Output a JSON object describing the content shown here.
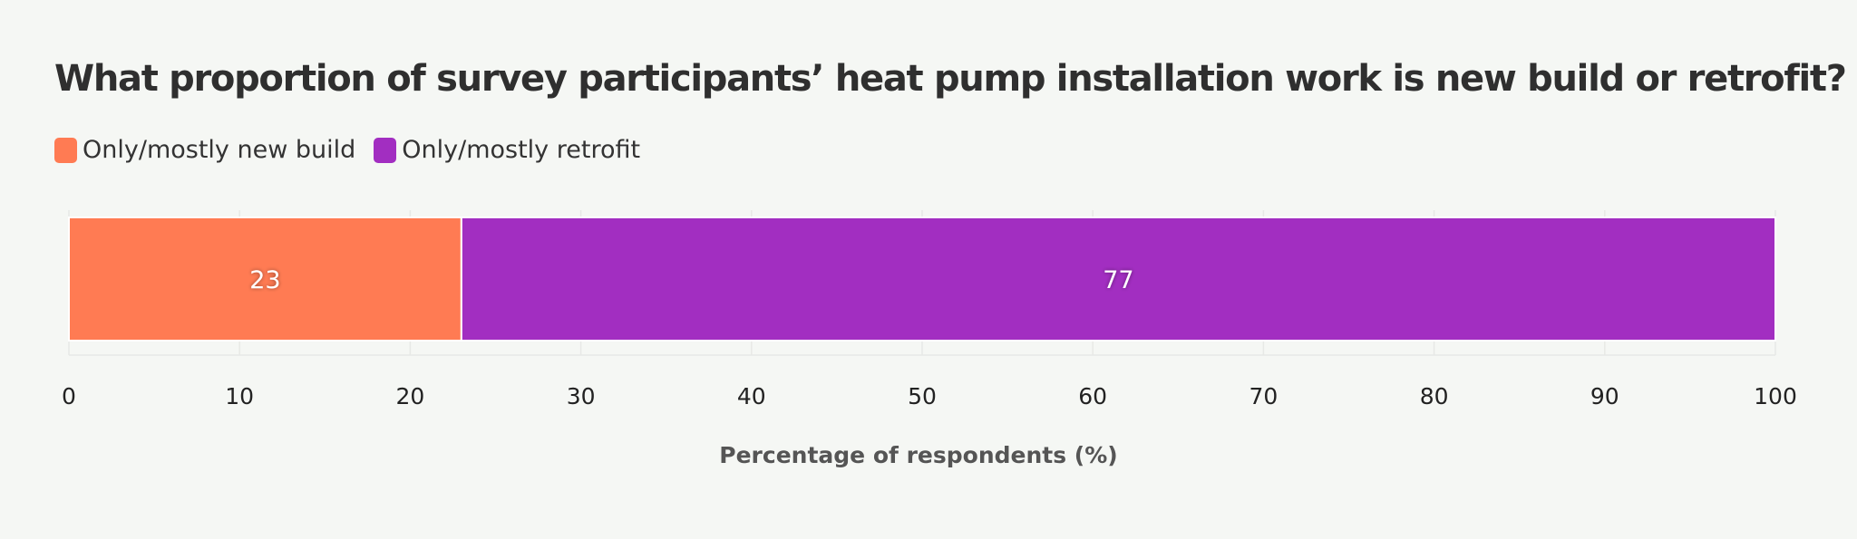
{
  "chart_data": {
    "type": "bar",
    "orientation": "horizontal",
    "stacked": true,
    "title": "What proportion of survey participants’ heat pump installation work is new build or retrofit?",
    "xlabel": "Percentage of respondents (%)",
    "ylabel": "",
    "xlim": [
      0,
      100
    ],
    "xticks": [
      0,
      10,
      20,
      30,
      40,
      50,
      60,
      70,
      80,
      90,
      100
    ],
    "grid": true,
    "legend_position": "top-left",
    "categories": [
      ""
    ],
    "series": [
      {
        "name": "Only/mostly new build",
        "values": [
          23
        ],
        "data_labels": [
          "23"
        ],
        "color": "#ff7b53"
      },
      {
        "name": "Only/mostly retrofit",
        "values": [
          77
        ],
        "data_labels": [
          "77"
        ],
        "color": "#a22ec1"
      }
    ]
  }
}
